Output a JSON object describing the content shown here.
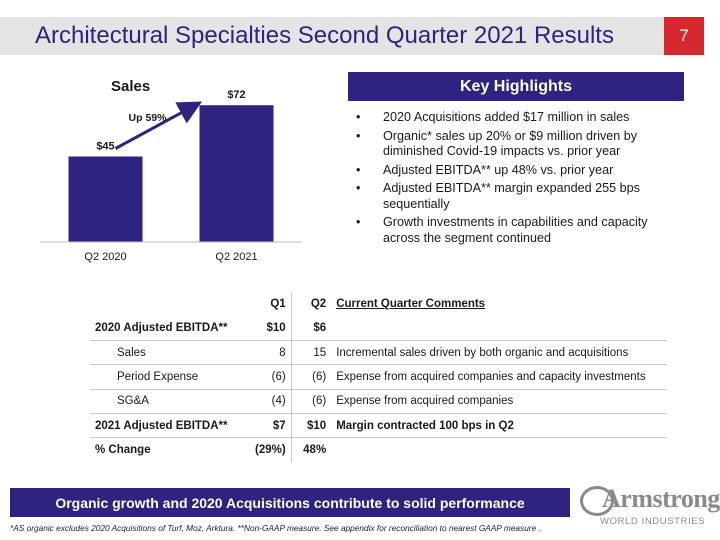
{
  "header": {
    "title": "Architectural Specialties Second Quarter 2021 Results",
    "page_number": "7"
  },
  "chart_data": {
    "type": "bar",
    "title": "Sales",
    "categories": [
      "Q2 2020",
      "Q2 2021"
    ],
    "values": [
      45,
      72
    ],
    "data_labels": [
      "$45",
      "$72"
    ],
    "annotation": "Up 59%",
    "color": "#2e2380",
    "ylim": [
      0,
      80
    ],
    "grid": false,
    "legend": "none"
  },
  "highlights": {
    "title": "Key Highlights",
    "items": [
      "2020 Acquisitions added $17 million in sales",
      "Organic* sales up 20% or $9 million driven by diminished Covid-19 impacts vs. prior year",
      "Adjusted EBITDA** up 48% vs. prior year",
      "Adjusted EBITDA** margin expanded 255 bps sequentially",
      "Growth investments in capabilities and capacity across the segment continued"
    ]
  },
  "table": {
    "headers": {
      "label": "",
      "q1": "Q1",
      "q2": "Q2",
      "comment": "Current Quarter Comments"
    },
    "rows": [
      {
        "label": "2020 Adjusted EBITDA**",
        "q1": "$10",
        "q2": "$6",
        "comment": ""
      },
      {
        "label": "Sales",
        "q1": "8",
        "q2": "15",
        "comment": "Incremental sales driven by both organic and acquisitions"
      },
      {
        "label": "Period Expense",
        "q1": "(6)",
        "q2": "(6)",
        "comment": "Expense from acquired companies and capacity investments"
      },
      {
        "label": "SG&A",
        "q1": "(4)",
        "q2": "(6)",
        "comment": "Expense from acquired companies"
      },
      {
        "label": "2021 Adjusted EBITDA**",
        "q1": "$7",
        "q2": "$10",
        "comment": "Margin contracted 100 bps in Q2"
      },
      {
        "label": "% Change",
        "q1": "(29%)",
        "q2": "48%",
        "comment": ""
      }
    ]
  },
  "footer": {
    "banner": "Organic growth and 2020 Acquisitions contribute to solid performance",
    "logo_name": "Armstrong",
    "logo_sub": "WORLD INDUSTRIES",
    "footnote": "*AS organic excludes 2020 Acquisitions of Turf, Moz, Arktura. **Non-GAAP measure. See appendix for reconciliation to nearest GAAP measure ."
  },
  "colors": {
    "brand": "#2e2380",
    "accent": "#d7282f",
    "title_bar": "#e4e4e4"
  }
}
